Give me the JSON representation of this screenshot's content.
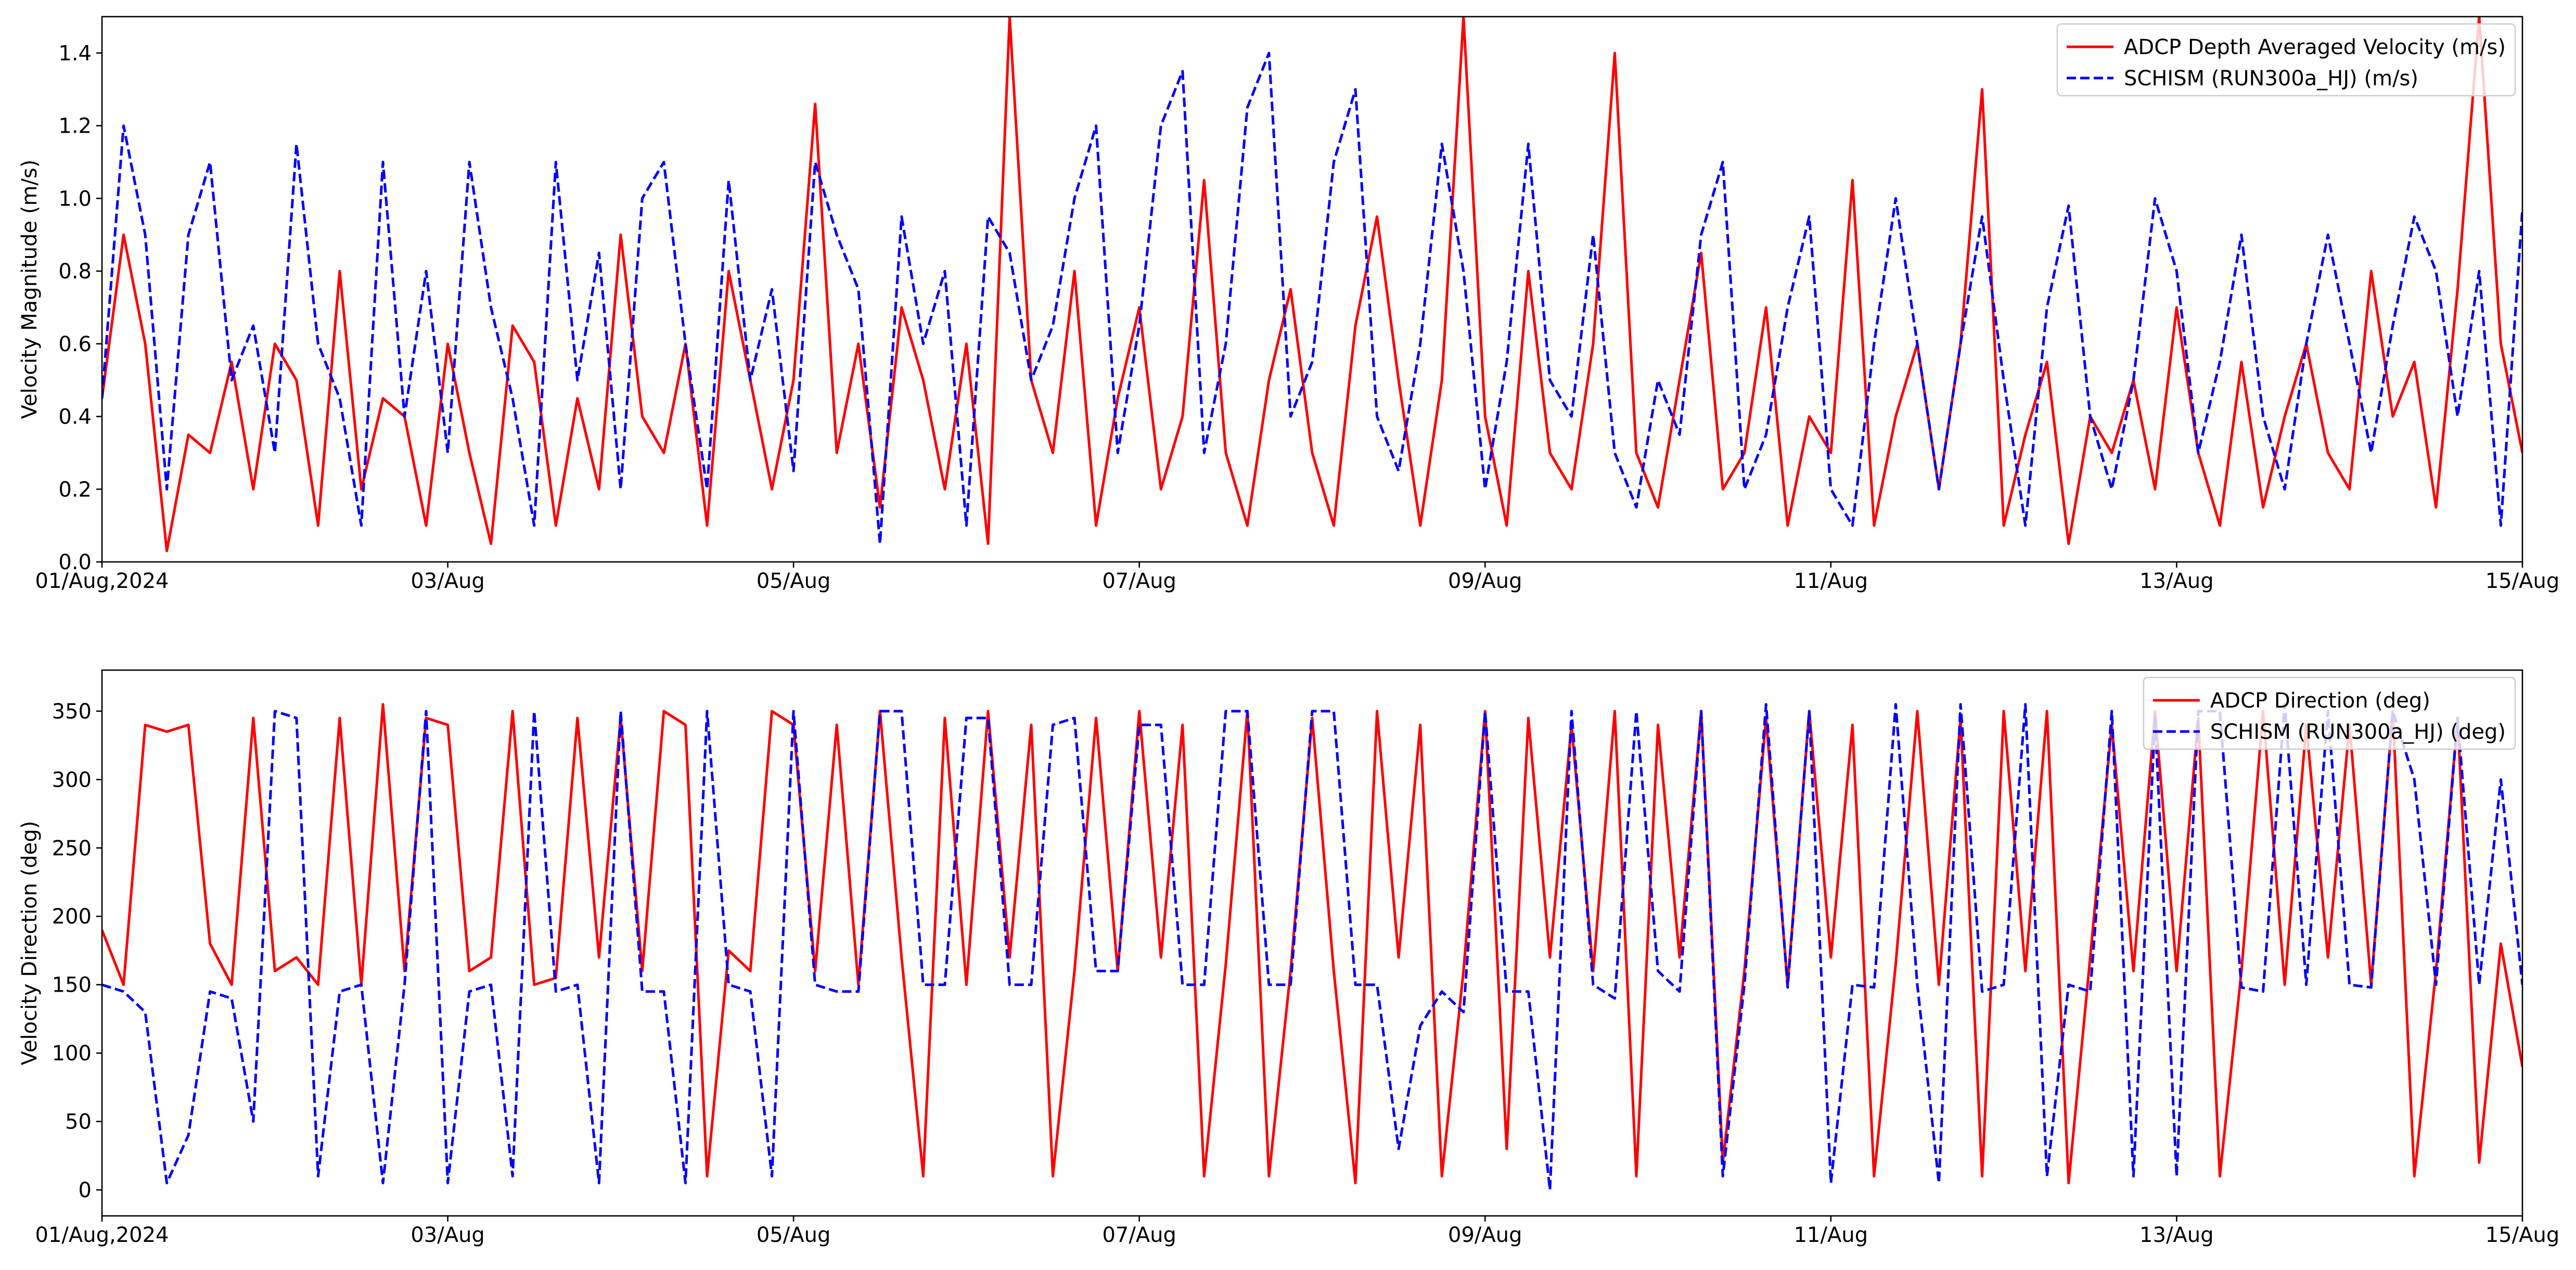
{
  "chart_data": [
    {
      "type": "line",
      "ylabel": "Velocity Magnitude (m/s)",
      "xlim": [
        0,
        336
      ],
      "xticks": [
        {
          "value": 0,
          "label": "01/Aug,2024"
        },
        {
          "value": 48,
          "label": "03/Aug"
        },
        {
          "value": 96,
          "label": "05/Aug"
        },
        {
          "value": 144,
          "label": "07/Aug"
        },
        {
          "value": 192,
          "label": "09/Aug"
        },
        {
          "value": 240,
          "label": "11/Aug"
        },
        {
          "value": 288,
          "label": "13/Aug"
        },
        {
          "value": 336,
          "label": "15/Aug"
        }
      ],
      "ylim": [
        0,
        1.5
      ],
      "yticks": [
        {
          "value": 0,
          "label": "0.0"
        },
        {
          "value": 0.2,
          "label": "0.2"
        },
        {
          "value": 0.4,
          "label": "0.4"
        },
        {
          "value": 0.6,
          "label": "0.6"
        },
        {
          "value": 0.8,
          "label": "0.8"
        },
        {
          "value": 1.0,
          "label": "1.0"
        },
        {
          "value": 1.2,
          "label": "1.2"
        },
        {
          "value": 1.4,
          "label": "1.4"
        }
      ],
      "legend": "upper right",
      "x": [
        0,
        3,
        6,
        9,
        12,
        15,
        18,
        21,
        24,
        27,
        30,
        33,
        36,
        39,
        42,
        45,
        48,
        51,
        54,
        57,
        60,
        63,
        66,
        69,
        72,
        75,
        78,
        81,
        84,
        87,
        90,
        93,
        96,
        99,
        102,
        105,
        108,
        111,
        114,
        117,
        120,
        123,
        126,
        129,
        132,
        135,
        138,
        141,
        144,
        147,
        150,
        153,
        156,
        159,
        162,
        165,
        168,
        171,
        174,
        177,
        180,
        183,
        186,
        189,
        192,
        195,
        198,
        201,
        204,
        207,
        210,
        213,
        216,
        219,
        222,
        225,
        228,
        231,
        234,
        237,
        240,
        243,
        246,
        249,
        252,
        255,
        258,
        261,
        264,
        267,
        270,
        273,
        276,
        279,
        282,
        285,
        288,
        291,
        294,
        297,
        300,
        303,
        306,
        309,
        312,
        315,
        318,
        321,
        324,
        327,
        330,
        333,
        336
      ],
      "series": [
        {
          "name": "ADCP Depth Averaged Velocity (m/s)",
          "color": "#ff0000",
          "linestyle": "solid",
          "values": [
            0.45,
            0.9,
            0.6,
            0.03,
            0.35,
            0.3,
            0.55,
            0.2,
            0.6,
            0.5,
            0.1,
            0.8,
            0.2,
            0.45,
            0.4,
            0.1,
            0.6,
            0.3,
            0.05,
            0.65,
            0.55,
            0.1,
            0.45,
            0.2,
            0.9,
            0.4,
            0.3,
            0.6,
            0.1,
            0.8,
            0.5,
            0.2,
            0.5,
            1.26,
            0.3,
            0.6,
            0.15,
            0.7,
            0.5,
            0.2,
            0.6,
            0.05,
            1.5,
            0.5,
            0.3,
            0.8,
            0.1,
            0.45,
            0.7,
            0.2,
            0.4,
            1.05,
            0.3,
            0.1,
            0.5,
            0.75,
            0.3,
            0.1,
            0.65,
            0.95,
            0.5,
            0.1,
            0.5,
            1.5,
            0.4,
            0.1,
            0.8,
            0.3,
            0.2,
            0.6,
            1.4,
            0.3,
            0.15,
            0.5,
            0.85,
            0.2,
            0.3,
            0.7,
            0.1,
            0.4,
            0.3,
            1.05,
            0.1,
            0.4,
            0.6,
            0.2,
            0.6,
            1.3,
            0.1,
            0.35,
            0.55,
            0.05,
            0.4,
            0.3,
            0.5,
            0.2,
            0.7,
            0.3,
            0.1,
            0.55,
            0.15,
            0.4,
            0.6,
            0.3,
            0.2,
            0.8,
            0.4,
            0.55,
            0.15,
            0.75,
            1.5,
            0.6,
            0.3
          ]
        },
        {
          "name": "SCHISM (RUN300a_HJ) (m/s)",
          "color": "#0000ff",
          "linestyle": "dashed",
          "values": [
            0.45,
            1.2,
            0.9,
            0.2,
            0.9,
            1.1,
            0.5,
            0.65,
            0.3,
            1.15,
            0.6,
            0.45,
            0.1,
            1.1,
            0.4,
            0.8,
            0.3,
            1.1,
            0.7,
            0.45,
            0.1,
            1.1,
            0.5,
            0.85,
            0.2,
            1.0,
            1.1,
            0.6,
            0.2,
            1.05,
            0.5,
            0.75,
            0.25,
            1.1,
            0.9,
            0.75,
            0.05,
            0.95,
            0.6,
            0.8,
            0.1,
            0.95,
            0.85,
            0.5,
            0.65,
            1.0,
            1.2,
            0.3,
            0.65,
            1.2,
            1.35,
            0.3,
            0.6,
            1.25,
            1.4,
            0.4,
            0.55,
            1.1,
            1.3,
            0.4,
            0.25,
            0.6,
            1.15,
            0.8,
            0.2,
            0.55,
            1.15,
            0.5,
            0.4,
            0.9,
            0.3,
            0.15,
            0.5,
            0.35,
            0.9,
            1.1,
            0.2,
            0.35,
            0.7,
            0.95,
            0.2,
            0.1,
            0.6,
            1.0,
            0.6,
            0.2,
            0.6,
            0.95,
            0.5,
            0.1,
            0.7,
            0.98,
            0.4,
            0.2,
            0.5,
            1.0,
            0.8,
            0.3,
            0.55,
            0.9,
            0.4,
            0.2,
            0.6,
            0.9,
            0.6,
            0.3,
            0.65,
            0.95,
            0.8,
            0.4,
            0.8,
            0.1,
            0.97
          ]
        }
      ]
    },
    {
      "type": "line",
      "ylabel": "Velocity Direction (deg)",
      "xlim": [
        0,
        336
      ],
      "xticks": [
        {
          "value": 0,
          "label": "01/Aug,2024"
        },
        {
          "value": 48,
          "label": "03/Aug"
        },
        {
          "value": 96,
          "label": "05/Aug"
        },
        {
          "value": 144,
          "label": "07/Aug"
        },
        {
          "value": 192,
          "label": "09/Aug"
        },
        {
          "value": 240,
          "label": "11/Aug"
        },
        {
          "value": 288,
          "label": "13/Aug"
        },
        {
          "value": 336,
          "label": "15/Aug"
        }
      ],
      "ylim": [
        -19,
        380
      ],
      "yticks": [
        0,
        50,
        100,
        150,
        200,
        250,
        300,
        350
      ],
      "legend": "upper right",
      "x": [
        0,
        3,
        6,
        9,
        12,
        15,
        18,
        21,
        24,
        27,
        30,
        33,
        36,
        39,
        42,
        45,
        48,
        51,
        54,
        57,
        60,
        63,
        66,
        69,
        72,
        75,
        78,
        81,
        84,
        87,
        90,
        93,
        96,
        99,
        102,
        105,
        108,
        111,
        114,
        117,
        120,
        123,
        126,
        129,
        132,
        135,
        138,
        141,
        144,
        147,
        150,
        153,
        156,
        159,
        162,
        165,
        168,
        171,
        174,
        177,
        180,
        183,
        186,
        189,
        192,
        195,
        198,
        201,
        204,
        207,
        210,
        213,
        216,
        219,
        222,
        225,
        228,
        231,
        234,
        237,
        240,
        243,
        246,
        249,
        252,
        255,
        258,
        261,
        264,
        267,
        270,
        273,
        276,
        279,
        282,
        285,
        288,
        291,
        294,
        297,
        300,
        303,
        306,
        309,
        312,
        315,
        318,
        321,
        324,
        327,
        330,
        333,
        336
      ],
      "series": [
        {
          "name": "ADCP Direction (deg)",
          "color": "#ff0000",
          "linestyle": "solid",
          "values": [
            190,
            150,
            340,
            335,
            340,
            180,
            150,
            345,
            160,
            170,
            150,
            345,
            150,
            355,
            160,
            345,
            340,
            160,
            170,
            350,
            150,
            155,
            345,
            170,
            345,
            160,
            350,
            340,
            10,
            175,
            160,
            350,
            340,
            160,
            340,
            150,
            350,
            170,
            10,
            345,
            150,
            350,
            170,
            340,
            10,
            160,
            345,
            160,
            350,
            170,
            340,
            10,
            165,
            350,
            10,
            160,
            345,
            160,
            5,
            350,
            170,
            340,
            10,
            160,
            350,
            30,
            345,
            170,
            340,
            160,
            350,
            10,
            340,
            170,
            350,
            20,
            160,
            345,
            150,
            350,
            170,
            340,
            10,
            165,
            350,
            150,
            345,
            10,
            350,
            160,
            350,
            5,
            170,
            340,
            160,
            350,
            160,
            345,
            10,
            160,
            350,
            150,
            340,
            170,
            340,
            150,
            350,
            10,
            160,
            345,
            20,
            180,
            90
          ]
        },
        {
          "name": "SCHISM (RUN300a_HJ) (deg)",
          "color": "#0000ff",
          "linestyle": "dashed",
          "values": [
            150,
            145,
            130,
            5,
            40,
            145,
            140,
            50,
            350,
            345,
            10,
            145,
            150,
            5,
            150,
            350,
            5,
            145,
            150,
            10,
            350,
            145,
            150,
            5,
            350,
            145,
            145,
            5,
            350,
            150,
            145,
            10,
            350,
            150,
            145,
            145,
            350,
            350,
            150,
            150,
            345,
            345,
            150,
            150,
            340,
            345,
            160,
            160,
            340,
            340,
            150,
            150,
            350,
            350,
            150,
            150,
            350,
            350,
            150,
            150,
            30,
            120,
            145,
            130,
            350,
            145,
            145,
            0,
            350,
            150,
            140,
            350,
            160,
            145,
            350,
            10,
            150,
            355,
            148,
            350,
            5,
            150,
            148,
            355,
            150,
            5,
            355,
            145,
            150,
            355,
            10,
            150,
            145,
            350,
            10,
            345,
            10,
            350,
            350,
            148,
            145,
            355,
            150,
            350,
            150,
            148,
            350,
            300,
            150,
            345,
            150,
            300,
            150
          ]
        }
      ]
    }
  ]
}
